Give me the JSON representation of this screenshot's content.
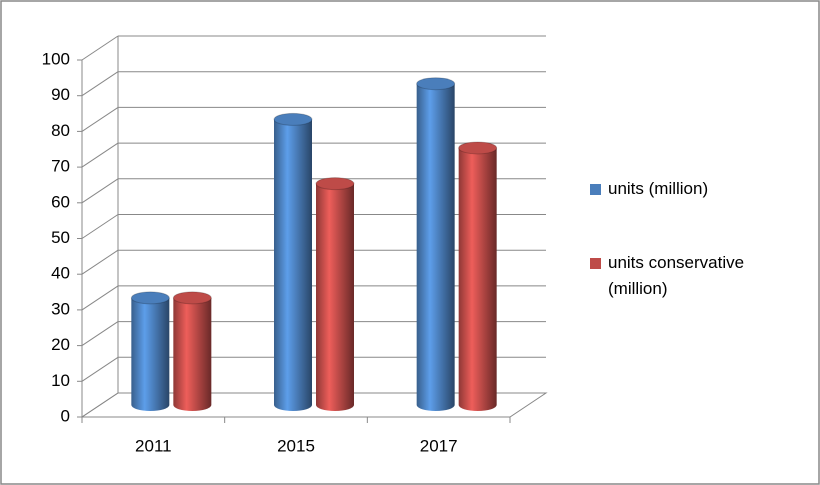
{
  "chart_data": {
    "type": "bar3d",
    "categories": [
      "2011",
      "2015",
      "2017"
    ],
    "series": [
      {
        "name": "units (million)",
        "color": "#4a7ebb",
        "values": [
          30,
          80,
          90
        ]
      },
      {
        "name": "units conservative (million)",
        "color": "#be4b48",
        "values": [
          30,
          62,
          72
        ]
      }
    ],
    "ylim": [
      0,
      100
    ],
    "yticks": [
      0,
      10,
      20,
      30,
      40,
      50,
      60,
      70,
      80,
      90,
      100
    ],
    "grid": true,
    "legend": "right"
  }
}
